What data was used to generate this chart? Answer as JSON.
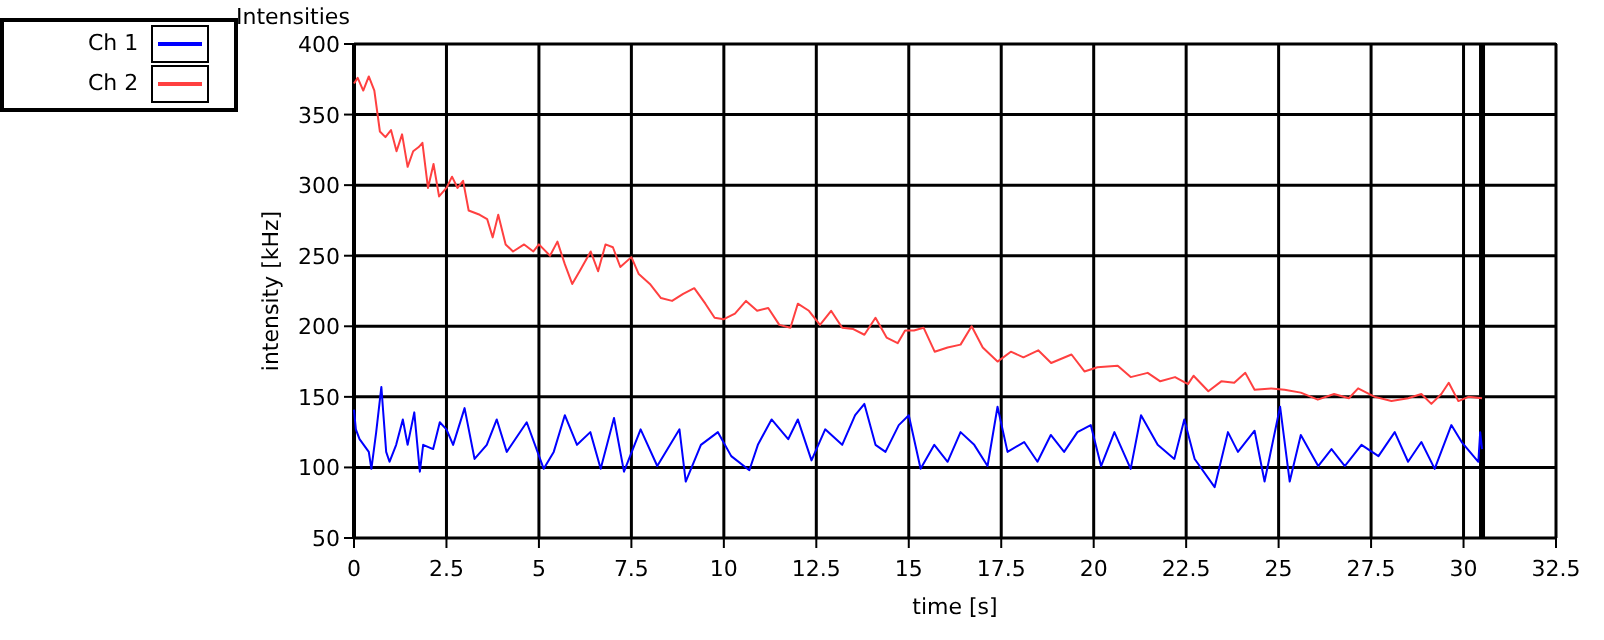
{
  "chart_data": {
    "type": "line",
    "title": "Intensities",
    "xlabel": "time [s]",
    "ylabel": "intensity [kHz]",
    "xlim": [
      0,
      32.5
    ],
    "xticks": [
      0,
      2.5,
      5,
      7.5,
      10,
      12.5,
      15,
      17.5,
      20,
      22.5,
      25,
      27.5,
      30,
      32.5
    ],
    "ylim": [
      50,
      400
    ],
    "yticks": [
      50,
      100,
      150,
      200,
      250,
      300,
      350,
      400
    ],
    "grid": true,
    "legend": "top left",
    "ref_lines": [
      {
        "axis": "x",
        "value": 30.5,
        "color": "#000000"
      }
    ],
    "series": [
      {
        "name": "Ch 1",
        "color": "#0000ff",
        "x": [
          0,
          0.05,
          0.15,
          0.4,
          0.47,
          0.6,
          0.74,
          0.87,
          0.96,
          1.14,
          1.32,
          1.45,
          1.63,
          1.78,
          1.87,
          2.14,
          2.32,
          2.5,
          2.68,
          2.99,
          3.26,
          3.59,
          3.86,
          4.13,
          4.67,
          5.13,
          5.4,
          5.7,
          6.03,
          6.39,
          6.67,
          7.03,
          7.3,
          7.75,
          8.2,
          8.8,
          8.97,
          9.38,
          9.84,
          10.2,
          10.69,
          10.92,
          11.29,
          11.74,
          12,
          12.37,
          12.74,
          13.2,
          13.55,
          13.8,
          14.1,
          14.37,
          14.73,
          15,
          15.32,
          15.69,
          16.05,
          16.4,
          16.77,
          17.13,
          17.4,
          17.67,
          18.12,
          18.48,
          18.84,
          19.2,
          19.56,
          19.92,
          20.2,
          20.56,
          21,
          21.28,
          21.73,
          22.18,
          22.45,
          22.73,
          23.27,
          23.63,
          23.9,
          24.35,
          24.62,
          25.04,
          25.3,
          25.6,
          26.07,
          26.43,
          26.79,
          27.24,
          27.7,
          28.14,
          28.5,
          28.86,
          29.22,
          29.67,
          29.95,
          30.4,
          30.45,
          30.5
        ],
        "values": [
          141,
          127,
          120,
          111,
          99,
          125,
          157,
          111,
          104,
          116,
          134,
          116,
          139,
          97,
          116,
          113,
          132,
          127,
          116,
          142,
          106,
          116,
          134,
          111,
          132,
          99,
          111,
          137,
          116,
          125,
          99,
          135,
          97,
          127,
          101,
          127,
          90,
          116,
          125,
          108,
          98,
          116,
          134,
          120,
          134,
          105,
          127,
          116,
          137,
          145,
          116,
          111,
          130,
          137,
          99,
          116,
          104,
          125,
          116,
          101,
          143,
          111,
          118,
          104,
          123,
          111,
          125,
          130,
          101,
          125,
          99,
          137,
          116,
          106,
          134,
          106,
          86,
          125,
          111,
          126,
          90,
          143,
          90,
          123,
          101,
          113,
          101,
          116,
          108,
          125,
          104,
          118,
          99,
          130,
          118,
          104,
          125,
          113
        ]
      },
      {
        "name": "Ch 2",
        "color": "#ff4040",
        "x": [
          0,
          0.1,
          0.25,
          0.4,
          0.55,
          0.7,
          0.85,
          1,
          1.15,
          1.3,
          1.45,
          1.6,
          1.75,
          1.85,
          2,
          2.15,
          2.3,
          2.5,
          2.65,
          2.8,
          2.95,
          3.1,
          3.4,
          3.6,
          3.75,
          3.9,
          4.1,
          4.3,
          4.6,
          4.85,
          5,
          5.3,
          5.5,
          5.7,
          5.9,
          6.1,
          6.4,
          6.6,
          6.8,
          7,
          7.2,
          7.5,
          7.7,
          8,
          8.3,
          8.6,
          8.9,
          9.2,
          9.5,
          9.75,
          10,
          10.3,
          10.6,
          10.9,
          11.2,
          11.5,
          11.8,
          12,
          12.3,
          12.6,
          12.9,
          13.2,
          13.5,
          13.8,
          14.1,
          14.4,
          14.7,
          14.9,
          15.14,
          15.4,
          15.7,
          16.05,
          16.4,
          16.7,
          17,
          17.4,
          17.76,
          18.1,
          18.5,
          18.85,
          19.4,
          19.75,
          20.1,
          20.65,
          21,
          21.46,
          21.8,
          22.2,
          22.55,
          22.7,
          23.1,
          23.45,
          23.8,
          24.1,
          24.35,
          24.8,
          25.16,
          25.6,
          26.06,
          26.5,
          26.9,
          27.15,
          27.6,
          28.05,
          28.5,
          28.86,
          29.13,
          29.4,
          29.6,
          29.86,
          30.13,
          30.5
        ],
        "values": [
          372,
          376,
          367,
          377,
          367,
          338,
          334,
          339,
          324,
          336,
          313,
          324,
          327,
          330,
          298,
          315,
          292,
          298,
          306,
          298,
          303,
          282,
          279,
          276,
          263,
          279,
          258,
          253,
          258,
          253,
          258,
          250,
          260,
          244,
          230,
          239,
          253,
          239,
          258,
          256,
          242,
          249,
          237,
          230,
          220,
          218,
          223,
          227,
          216,
          206,
          205,
          209,
          218,
          211,
          213,
          201,
          199,
          216,
          211,
          201,
          211,
          199,
          198,
          194,
          206,
          192,
          188,
          197,
          197,
          199,
          182,
          185,
          187,
          200,
          185,
          175,
          182,
          178,
          183,
          174,
          180,
          168,
          171,
          172,
          164,
          167,
          161,
          164,
          159,
          165,
          154,
          161,
          160,
          167,
          155,
          156,
          155,
          153,
          148,
          152,
          149,
          156,
          150,
          147,
          149,
          152,
          145,
          152,
          160,
          147,
          150,
          149
        ]
      }
    ]
  }
}
